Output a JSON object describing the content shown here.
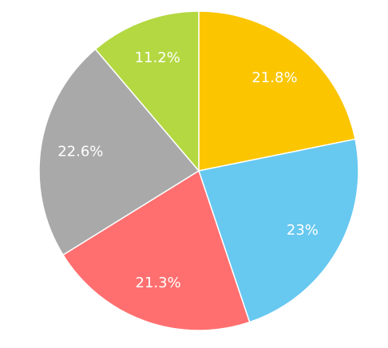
{
  "chart_data": {
    "type": "pie",
    "values": [
      21.8,
      23,
      21.3,
      22.6,
      11.2
    ],
    "value_labels": [
      "21.8%",
      "23%",
      "21.3%",
      "22.6%",
      "11.2%"
    ],
    "colors": [
      "#fbc500",
      "#67c8f0",
      "#ff6f6f",
      "#a9a9a9",
      "#b3d841"
    ]
  }
}
